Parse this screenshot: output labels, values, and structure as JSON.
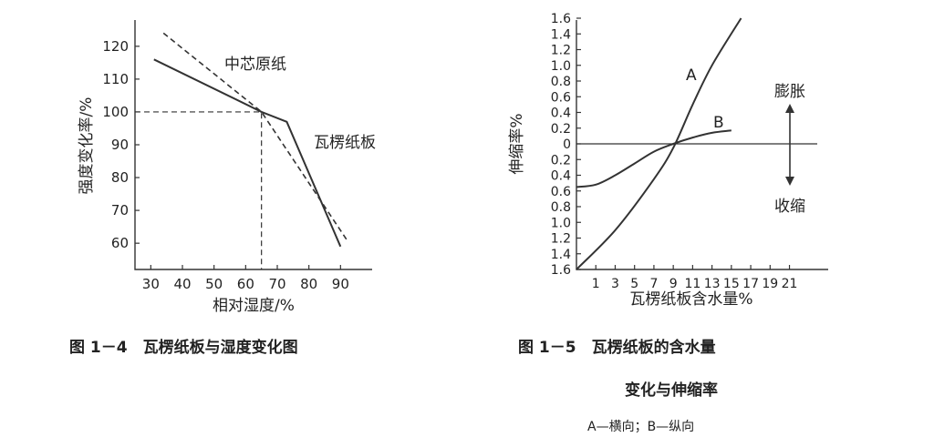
{
  "chart_data": [
    {
      "type": "line",
      "xlabel": "相对湿度/%",
      "ylabel": "强度变化率/%",
      "x_ticks": [
        30,
        40,
        50,
        60,
        70,
        80,
        90
      ],
      "y_ticks": [
        60,
        70,
        80,
        90,
        100,
        110,
        120
      ],
      "xlim": [
        25,
        100
      ],
      "ylim": [
        52,
        128
      ],
      "reference": {
        "x": 65,
        "y": 100
      },
      "series": [
        {
          "name": "中芯原纸",
          "style": "dashed",
          "points": [
            [
              34,
              124
            ],
            [
              65,
              100
            ],
            [
              92,
              61
            ]
          ]
        },
        {
          "name": "瓦楞纸板",
          "style": "solid",
          "points": [
            [
              31,
              116
            ],
            [
              65,
              100
            ],
            [
              73,
              97
            ],
            [
              90,
              59
            ]
          ]
        }
      ],
      "caption": "图 1－4　瓦楞纸板与湿度变化图"
    },
    {
      "type": "line",
      "xlabel": "瓦楞纸板含水量%",
      "ylabel": "伸缩率%",
      "x_ticks": [
        "1",
        "3",
        "5",
        "7",
        "9",
        "11",
        "13",
        "15",
        "17",
        "19",
        "21"
      ],
      "y_ticks_top": [
        "1.6",
        "1.4",
        "1.2",
        "1.0",
        "0.8",
        "0.6",
        "0.4",
        "0.2"
      ],
      "y_zero": "0",
      "y_ticks_bottom": [
        "0.2",
        "0.4",
        "0.6",
        "0.8",
        "1.0",
        "1.2",
        "1.4",
        "1.6"
      ],
      "xlim": [
        -1,
        25
      ],
      "ylim": [
        -1.6,
        1.6
      ],
      "series": [
        {
          "name": "A",
          "points": [
            [
              -1,
              -1.6
            ],
            [
              3,
              -1.1
            ],
            [
              7,
              -0.45
            ],
            [
              9,
              -0.05
            ],
            [
              11,
              0.5
            ],
            [
              13,
              1.0
            ],
            [
              16,
              1.6
            ]
          ]
        },
        {
          "name": "B",
          "points": [
            [
              -1,
              -0.55
            ],
            [
              1,
              -0.52
            ],
            [
              3,
              -0.4
            ],
            [
              5,
              -0.25
            ],
            [
              7,
              -0.1
            ],
            [
              9,
              0.0
            ],
            [
              11,
              0.08
            ],
            [
              13,
              0.14
            ],
            [
              15,
              0.17
            ]
          ]
        }
      ],
      "annotations": {
        "expand": "膨胀",
        "shrink": "收缩"
      },
      "caption_line1": "图 1－5　瓦楞纸板的含水量",
      "caption_line2": "变化与伸缩率",
      "note": "A—横向；B—纵向"
    }
  ]
}
